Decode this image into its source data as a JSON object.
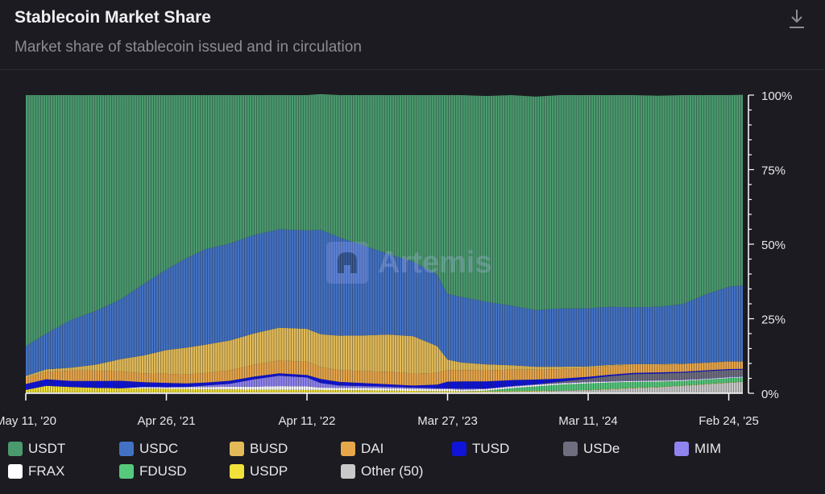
{
  "header": {
    "title": "Stablecoin Market Share",
    "subtitle": "Market share of stablecoin issued and in circulation",
    "download_icon": "download-icon"
  },
  "watermark": {
    "text": "Artemis"
  },
  "chart_data": {
    "type": "area",
    "title": "Stablecoin Market Share",
    "subtitle": "Market share of stablecoin issued and in circulation",
    "stacked": true,
    "normalized": true,
    "x": [
      "2020-05-11",
      "2020-07-01",
      "2020-09-01",
      "2020-11-01",
      "2021-01-01",
      "2021-03-01",
      "2021-04-26",
      "2021-06-15",
      "2021-08-01",
      "2021-10-01",
      "2021-12-01",
      "2022-02-01",
      "2022-04-11",
      "2022-05-15",
      "2022-07-01",
      "2022-09-01",
      "2022-11-01",
      "2023-01-01",
      "2023-03-01",
      "2023-03-27",
      "2023-05-01",
      "2023-07-01",
      "2023-09-01",
      "2023-11-01",
      "2024-01-01",
      "2024-03-11",
      "2024-05-01",
      "2024-07-01",
      "2024-09-01",
      "2024-11-01",
      "2025-01-01",
      "2025-02-24",
      "2025-03-31"
    ],
    "x_tick_labels": [
      "May 11, '20",
      "Apr 26, '21",
      "Apr 11, '22",
      "Mar 27, '23",
      "Mar 11, '24",
      "Feb 24, '25"
    ],
    "x_tick_dates": [
      "2020-05-11",
      "2021-04-26",
      "2022-04-11",
      "2023-03-27",
      "2024-03-11",
      "2025-02-24"
    ],
    "y_ticks": [
      "0%",
      "25%",
      "50%",
      "75%",
      "100%"
    ],
    "ylim": [
      0,
      100
    ],
    "y_axis_position": "right",
    "legend_position": "bottom",
    "series": [
      {
        "name": "Other (50)",
        "color": "#c9c9c9",
        "values": [
          0.3,
          0.3,
          0.3,
          0.3,
          0.3,
          0.3,
          0.3,
          0.3,
          0.3,
          0.3,
          0.3,
          0.3,
          0.3,
          0.3,
          0.3,
          0.3,
          0.3,
          0.3,
          0.3,
          0.3,
          0.3,
          0.4,
          0.5,
          0.6,
          0.8,
          1.0,
          1.3,
          1.7,
          2.0,
          2.5,
          3.0,
          3.5,
          3.8
        ]
      },
      {
        "name": "USDP",
        "color": "#f1e13b",
        "values": [
          0.8,
          2.2,
          1.8,
          1.5,
          1.4,
          1.3,
          1.2,
          1.1,
          1.0,
          1.0,
          0.9,
          0.9,
          0.8,
          0.8,
          0.7,
          0.7,
          0.6,
          0.5,
          0.4,
          0.4,
          0.3,
          0.3,
          0.2,
          0.2,
          0.1,
          0.1,
          0.1,
          0.1,
          0.1,
          0.1,
          0.1,
          0.1,
          0.1
        ]
      },
      {
        "name": "FDUSD",
        "color": "#56c97d",
        "values": [
          0,
          0,
          0,
          0,
          0,
          0,
          0,
          0,
          0,
          0,
          0,
          0,
          0,
          0,
          0,
          0,
          0,
          0,
          0,
          0,
          0,
          0.2,
          1.0,
          1.5,
          2.0,
          2.2,
          2.2,
          2.0,
          1.8,
          1.5,
          1.5,
          1.5,
          1.4
        ]
      },
      {
        "name": "FRAX",
        "color": "#ffffff",
        "values": [
          0,
          0,
          0,
          0,
          0,
          0.5,
          0.5,
          0.7,
          0.8,
          0.9,
          1.0,
          1.2,
          1.2,
          0.8,
          0.8,
          0.8,
          0.8,
          0.7,
          0.7,
          0.7,
          0.6,
          0.5,
          0.5,
          0.5,
          0.4,
          0.4,
          0.3,
          0.3,
          0.3,
          0.3,
          0.2,
          0.2,
          0.2
        ]
      },
      {
        "name": "MIM",
        "color": "#8f83f0",
        "values": [
          0,
          0,
          0,
          0,
          0,
          0,
          0,
          0,
          0.5,
          1.0,
          2.5,
          3.5,
          3.0,
          1.5,
          0.8,
          0.6,
          0.5,
          0.4,
          0.3,
          0.3,
          0.3,
          0.2,
          0.2,
          0.2,
          0.2,
          0.2,
          0.2,
          0.2,
          0.2,
          0.2,
          0.2,
          0.2,
          0.2
        ]
      },
      {
        "name": "USDe",
        "color": "#6e6e80",
        "values": [
          0,
          0,
          0,
          0,
          0,
          0,
          0,
          0,
          0,
          0,
          0,
          0,
          0,
          0,
          0,
          0,
          0,
          0,
          0,
          0,
          0,
          0,
          0,
          0,
          0.4,
          1.0,
          1.6,
          2.1,
          2.2,
          2.3,
          2.4,
          2.3,
          2.2
        ]
      },
      {
        "name": "TUSD",
        "color": "#0f14d8",
        "values": [
          2.0,
          2.2,
          2.0,
          2.3,
          2.5,
          1.6,
          1.5,
          1.2,
          1.0,
          1.0,
          0.9,
          0.8,
          0.8,
          1.4,
          1.2,
          1.0,
          0.8,
          0.7,
          1.2,
          2.2,
          2.5,
          2.4,
          2.0,
          1.6,
          1.0,
          0.6,
          0.5,
          0.4,
          0.4,
          0.3,
          0.3,
          0.3,
          0.3
        ]
      },
      {
        "name": "DAI",
        "color": "#e8a64a",
        "values": [
          2.0,
          2.5,
          3.5,
          3.5,
          3.2,
          3.0,
          3.0,
          3.0,
          3.2,
          3.5,
          4.0,
          4.3,
          4.5,
          4.0,
          4.0,
          4.0,
          4.2,
          4.0,
          3.9,
          3.9,
          3.8,
          3.7,
          3.5,
          3.3,
          3.2,
          3.0,
          3.0,
          2.8,
          2.6,
          2.6,
          2.5,
          2.5,
          2.4
        ]
      },
      {
        "name": "BUSD",
        "color": "#e2bb58",
        "values": [
          0.7,
          0.8,
          1.0,
          2.0,
          4.0,
          6.0,
          8.0,
          9.0,
          9.5,
          10.0,
          10.5,
          11.0,
          11.0,
          11.0,
          11.5,
          12.0,
          12.5,
          12.5,
          9.0,
          3.5,
          2.5,
          2.0,
          1.5,
          1.0,
          0.8,
          0.5,
          0.3,
          0.2,
          0.2,
          0.1,
          0.1,
          0.1,
          0.1
        ]
      },
      {
        "name": "USDC",
        "color": "#4372c4",
        "values": [
          10.0,
          12.0,
          16.0,
          18.0,
          20.0,
          24.0,
          27.0,
          30.0,
          32.0,
          32.5,
          33.0,
          33.0,
          33.0,
          35.0,
          33.0,
          30.0,
          27.0,
          25.0,
          24.0,
          22.0,
          22.0,
          21.0,
          20.0,
          19.0,
          19.5,
          19.5,
          19.5,
          19.0,
          19.2,
          20.0,
          23.0,
          25.0,
          25.5
        ]
      },
      {
        "name": "USDT",
        "color": "#4a9a6e",
        "values": [
          84.2,
          80.0,
          75.4,
          72.4,
          68.6,
          63.3,
          58.5,
          54.7,
          51.7,
          49.8,
          46.9,
          45.0,
          45.4,
          45.5,
          47.7,
          50.6,
          53.3,
          55.9,
          60.2,
          66.7,
          67.7,
          69.0,
          70.6,
          71.6,
          71.6,
          71.5,
          71.0,
          71.2,
          70.8,
          70.1,
          66.7,
          64.3,
          63.9
        ]
      }
    ]
  },
  "legend": [
    {
      "name": "USDT",
      "color": "#4a9a6e"
    },
    {
      "name": "USDC",
      "color": "#4372c4"
    },
    {
      "name": "BUSD",
      "color": "#e2bb58"
    },
    {
      "name": "DAI",
      "color": "#e8a64a"
    },
    {
      "name": "TUSD",
      "color": "#0f14d8"
    },
    {
      "name": "USDe",
      "color": "#6e6e80"
    },
    {
      "name": "MIM",
      "color": "#8f83f0"
    },
    {
      "name": "FRAX",
      "color": "#ffffff"
    },
    {
      "name": "FDUSD",
      "color": "#56c97d"
    },
    {
      "name": "USDP",
      "color": "#f1e13b"
    },
    {
      "name": "Other (50)",
      "color": "#c9c9c9"
    }
  ]
}
